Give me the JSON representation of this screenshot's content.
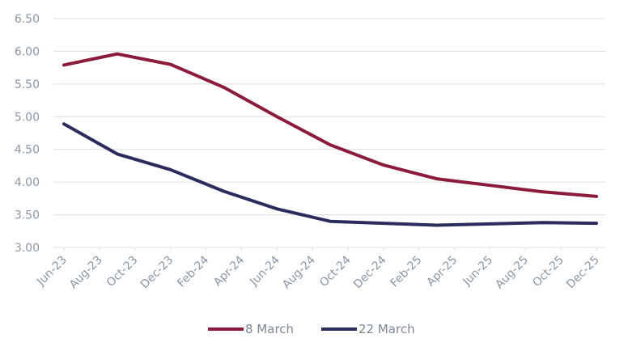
{
  "chart_data": {
    "type": "line",
    "title": "",
    "xlabel": "",
    "ylabel": "",
    "x": [
      "Jun-23",
      "Aug-23",
      "Oct-23",
      "Dec-23",
      "Feb-24",
      "Apr-24",
      "Jun-24",
      "Aug-24",
      "Oct-24",
      "Dec-24",
      "Feb-25",
      "Apr-25",
      "Jun-25",
      "Aug-25",
      "Oct-25",
      "Dec-25"
    ],
    "ylim": [
      3.0,
      6.5
    ],
    "yticks": [
      "3.00",
      "3.50",
      "4.00",
      "4.50",
      "5.00",
      "5.50",
      "6.00",
      "6.50"
    ],
    "grid": true,
    "legend_position": "bottom",
    "series": [
      {
        "name": "8 March",
        "color": "#8b1a3b",
        "points": [
          {
            "x": "Jun-23",
            "y": 5.79
          },
          {
            "x": "Sep-23",
            "y": 5.96
          },
          {
            "x": "Dec-23",
            "y": 5.8
          },
          {
            "x": "Mar-24",
            "y": 5.45
          },
          {
            "x": "Jun-24",
            "y": 5.0
          },
          {
            "x": "Sep-24",
            "y": 4.57
          },
          {
            "x": "Dec-24",
            "y": 4.26
          },
          {
            "x": "Mar-25",
            "y": 4.05
          },
          {
            "x": "Jun-25",
            "y": 3.95
          },
          {
            "x": "Sep-25",
            "y": 3.85
          },
          {
            "x": "Dec-25",
            "y": 3.78
          }
        ]
      },
      {
        "name": "22 March",
        "color": "#2b2b5e",
        "points": [
          {
            "x": "Jun-23",
            "y": 4.89
          },
          {
            "x": "Sep-23",
            "y": 4.43
          },
          {
            "x": "Dec-23",
            "y": 4.19
          },
          {
            "x": "Mar-24",
            "y": 3.86
          },
          {
            "x": "Jun-24",
            "y": 3.59
          },
          {
            "x": "Sep-24",
            "y": 3.4
          },
          {
            "x": "Dec-24",
            "y": 3.37
          },
          {
            "x": "Mar-25",
            "y": 3.34
          },
          {
            "x": "Jun-25",
            "y": 3.36
          },
          {
            "x": "Sep-25",
            "y": 3.38
          },
          {
            "x": "Dec-25",
            "y": 3.37
          }
        ]
      }
    ]
  }
}
